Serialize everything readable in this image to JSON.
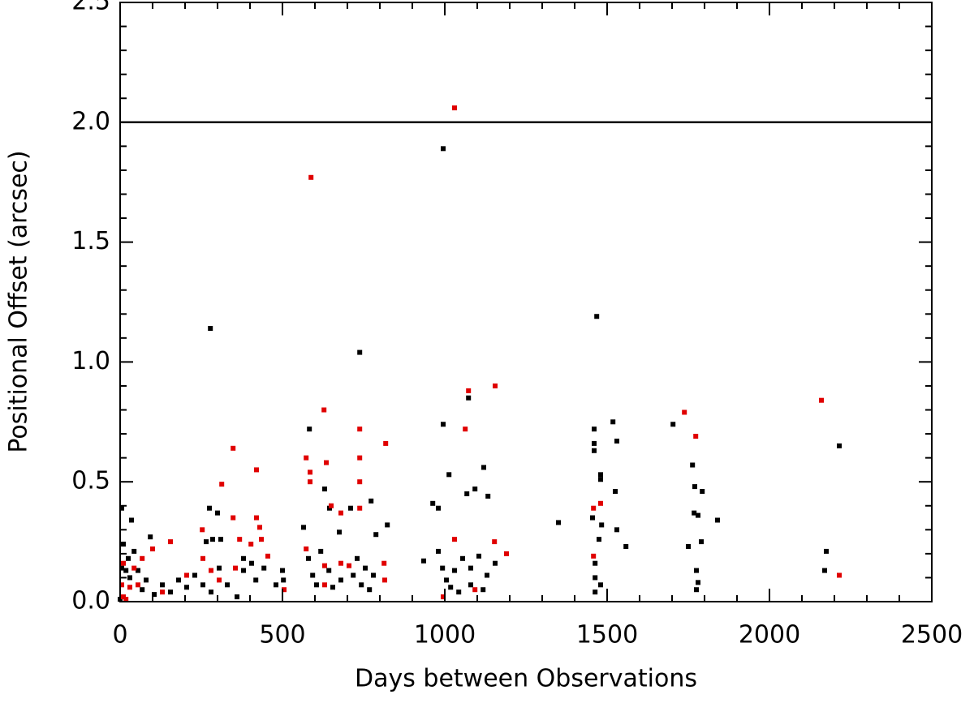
{
  "chart_data": {
    "type": "scatter",
    "xlabel": "Days between Observations",
    "ylabel": "Positional Offset (arcsec)",
    "xlim": [
      0,
      2500
    ],
    "ylim": [
      0,
      2.5
    ],
    "xticks": [
      0,
      500,
      1000,
      1500,
      2000,
      2500
    ],
    "yticks": [
      {
        "value": 0,
        "label": "0.0"
      },
      0.5,
      {
        "value": 1,
        "label": "1.0"
      },
      1.5,
      {
        "value": 2,
        "label": "2.0"
      },
      2.5
    ],
    "xminor": [
      100,
      200,
      300,
      400,
      600,
      700,
      800,
      900,
      1100,
      1200,
      1300,
      1400,
      1600,
      1700,
      1800,
      1900,
      2100,
      2200,
      2300,
      2400
    ],
    "yminor": [
      0.1,
      0.2,
      0.3,
      0.4,
      0.6,
      0.7,
      0.8,
      0.9,
      1.1,
      1.2,
      1.3,
      1.4,
      1.6,
      1.7,
      1.8,
      1.9,
      2.1,
      2.2,
      2.3,
      2.4
    ],
    "hline": 2,
    "series": [
      {
        "color": "#000000",
        "x": [
          995,
          278,
          738,
          1468,
          995,
          1703,
          2215,
          1518,
          1530,
          1460,
          1460,
          1460,
          583,
          1073,
          1120,
          1013,
          1480,
          1480,
          1763,
          1770,
          1793,
          1525,
          1133,
          1093,
          1068,
          275,
          300,
          1350,
          1840,
          1768,
          1780,
          963,
          980,
          773,
          630,
          645,
          710,
          5,
          35,
          565,
          675,
          788,
          823,
          1530,
          1558,
          1455,
          1483,
          1475,
          1750,
          1790,
          2175,
          2170,
          1775,
          1780,
          1775,
          1463,
          1463,
          1463,
          1480,
          935,
          980,
          993,
          1005,
          1018,
          1030,
          1055,
          1080,
          1105,
          1130,
          1155,
          1118,
          1080,
          1043,
          580,
          593,
          605,
          618,
          643,
          655,
          680,
          718,
          730,
          743,
          755,
          768,
          780,
          500,
          503,
          480,
          443,
          418,
          380,
          360,
          330,
          305,
          280,
          255,
          230,
          205,
          180,
          155,
          130,
          105,
          93,
          43,
          25,
          10,
          18,
          30,
          55,
          68,
          80,
          5,
          0,
          265,
          285,
          310,
          380,
          405
        ],
        "values": [
          1.89,
          1.14,
          1.04,
          1.19,
          0.74,
          0.74,
          0.65,
          0.75,
          0.67,
          0.72,
          0.66,
          0.63,
          0.72,
          0.85,
          0.56,
          0.53,
          0.53,
          0.51,
          0.57,
          0.48,
          0.46,
          0.46,
          0.44,
          0.47,
          0.45,
          0.39,
          0.37,
          0.33,
          0.34,
          0.37,
          0.36,
          0.41,
          0.39,
          0.42,
          0.47,
          0.39,
          0.39,
          0.39,
          0.34,
          0.31,
          0.29,
          0.28,
          0.32,
          0.3,
          0.23,
          0.35,
          0.32,
          0.26,
          0.23,
          0.25,
          0.21,
          0.13,
          0.13,
          0.08,
          0.05,
          0.16,
          0.1,
          0.04,
          0.07,
          0.17,
          0.21,
          0.14,
          0.09,
          0.06,
          0.13,
          0.18,
          0.14,
          0.19,
          0.11,
          0.16,
          0.05,
          0.07,
          0.04,
          0.18,
          0.11,
          0.07,
          0.21,
          0.13,
          0.06,
          0.09,
          0.11,
          0.18,
          0.07,
          0.14,
          0.05,
          0.11,
          0.13,
          0.09,
          0.07,
          0.14,
          0.09,
          0.13,
          0.02,
          0.07,
          0.14,
          0.04,
          0.07,
          0.11,
          0.06,
          0.09,
          0.04,
          0.07,
          0.03,
          0.27,
          0.21,
          0.18,
          0.24,
          0.13,
          0.1,
          0.13,
          0.05,
          0.09,
          0.14,
          0.01,
          0.25,
          0.26,
          0.26,
          0.18,
          0.16
        ]
      },
      {
        "color": "#e00000",
        "x": [
          1030,
          588,
          628,
          1738,
          2160,
          1073,
          1155,
          1063,
          738,
          1773,
          818,
          348,
          420,
          313,
          573,
          585,
          585,
          635,
          738,
          738,
          348,
          420,
          253,
          650,
          680,
          738,
          1480,
          1458,
          1458,
          1153,
          1190,
          1030,
          813,
          815,
          995,
          2215,
          435,
          430,
          403,
          455,
          368,
          505,
          573,
          630,
          680,
          705,
          155,
          100,
          68,
          43,
          10,
          5,
          10,
          18,
          30,
          55,
          130,
          205,
          255,
          280,
          305,
          355,
          1093,
          630
        ],
        "values": [
          2.06,
          1.77,
          0.8,
          0.79,
          0.84,
          0.88,
          0.9,
          0.72,
          0.72,
          0.69,
          0.66,
          0.64,
          0.55,
          0.49,
          0.6,
          0.54,
          0.5,
          0.58,
          0.6,
          0.5,
          0.35,
          0.35,
          0.3,
          0.4,
          0.37,
          0.39,
          0.41,
          0.39,
          0.19,
          0.25,
          0.2,
          0.26,
          0.16,
          0.09,
          0.02,
          0.11,
          0.26,
          0.31,
          0.24,
          0.19,
          0.26,
          0.05,
          0.22,
          0.15,
          0.16,
          0.15,
          0.25,
          0.22,
          0.18,
          0.14,
          0.16,
          0.07,
          0.02,
          0.01,
          0.06,
          0.07,
          0.04,
          0.11,
          0.18,
          0.13,
          0.09,
          0.14,
          0.05,
          0.07
        ]
      }
    ]
  }
}
